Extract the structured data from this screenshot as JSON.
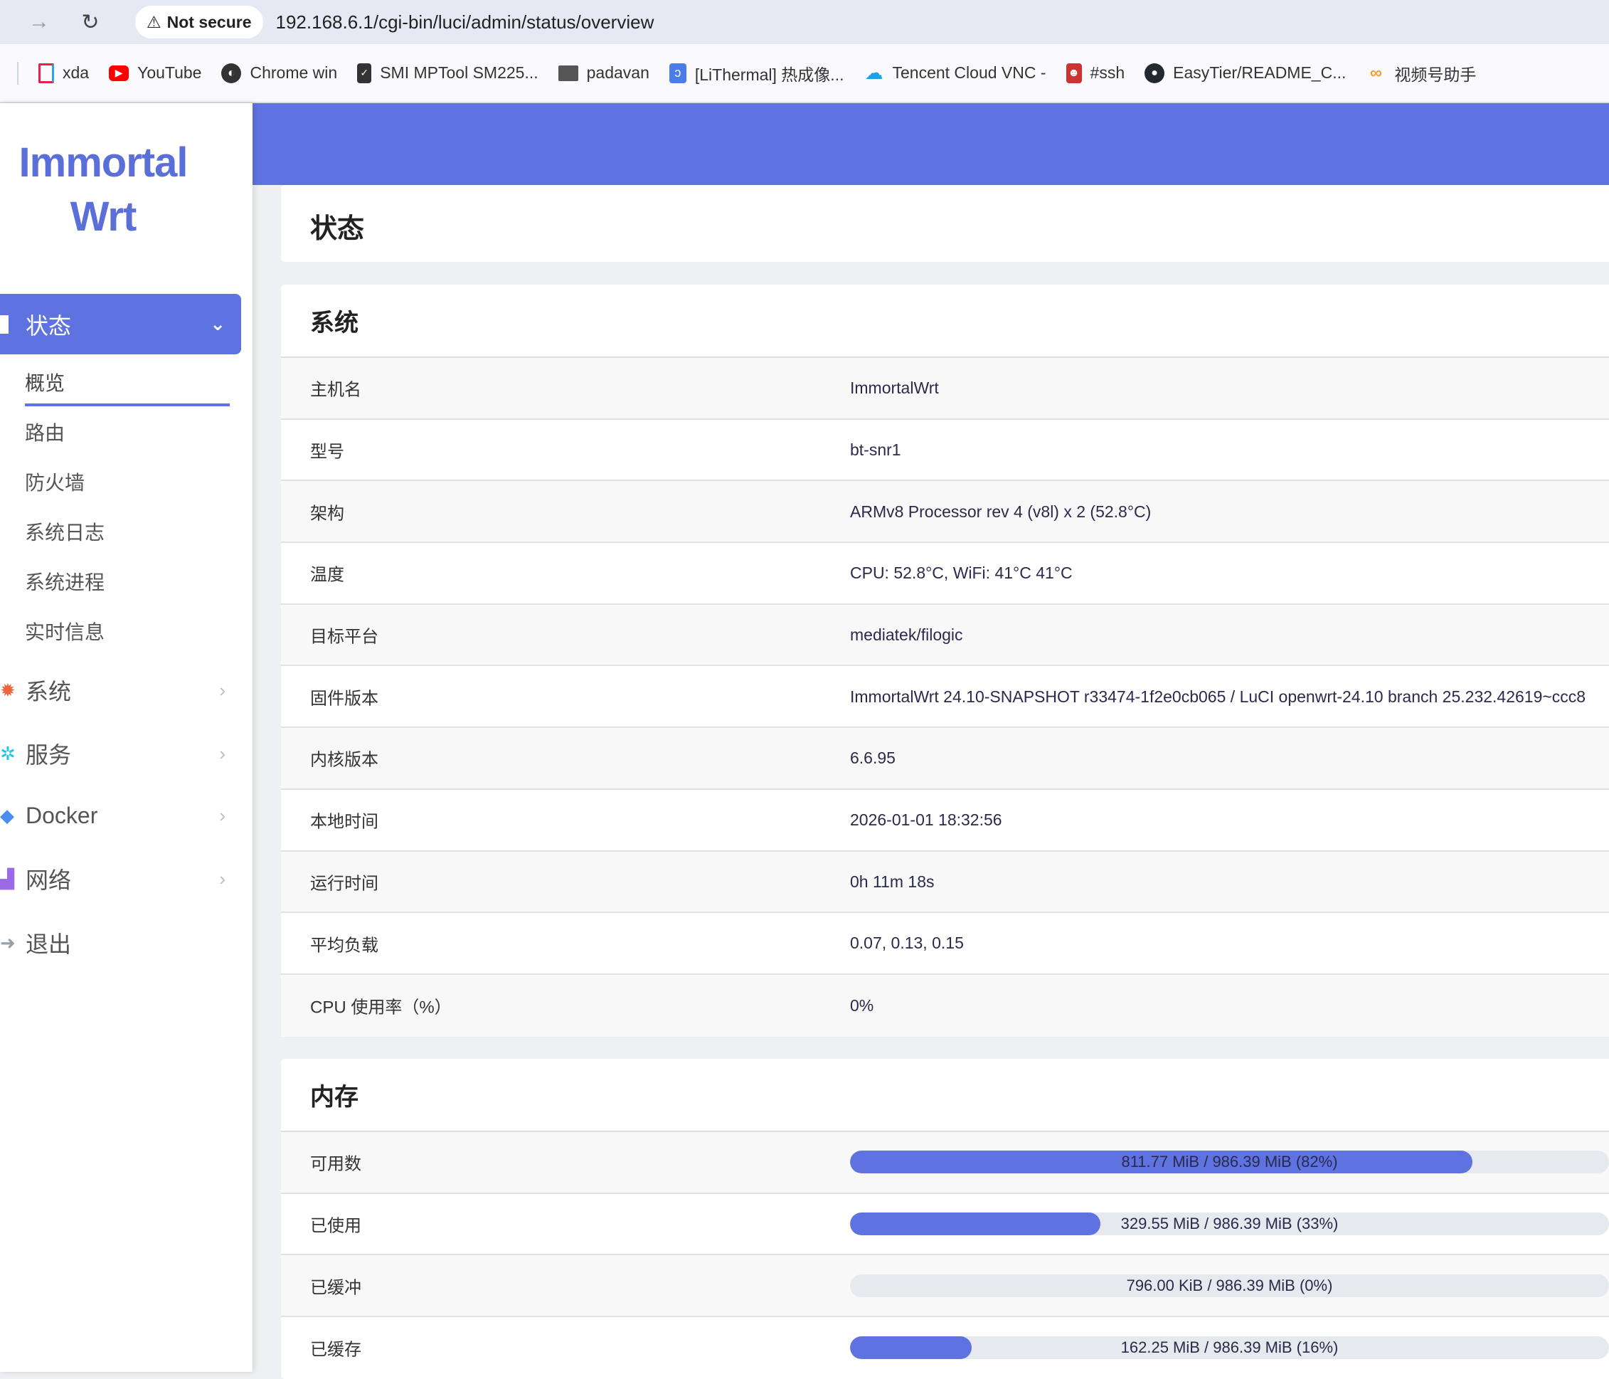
{
  "browser": {
    "security_label": "Not secure",
    "url": "192.168.6.1/cgi-bin/luci/admin/status/overview",
    "bookmarks": [
      {
        "label": "xda",
        "icon": "xda-icon"
      },
      {
        "label": "YouTube",
        "icon": "youtube-icon"
      },
      {
        "label": "Chrome win",
        "icon": "globe-icon"
      },
      {
        "label": "SMI MPTool SM225...",
        "icon": "usb-icon"
      },
      {
        "label": "padavan",
        "icon": "folder-icon"
      },
      {
        "label": "[LiThermal] 热成像...",
        "icon": "lithermal-icon"
      },
      {
        "label": "Tencent Cloud VNC -",
        "icon": "cloud-icon"
      },
      {
        "label": "#ssh",
        "icon": "avatar-icon"
      },
      {
        "label": "EasyTier/README_C...",
        "icon": "github-icon"
      },
      {
        "label": "视频号助手",
        "icon": "channels-icon"
      }
    ]
  },
  "logo": {
    "line1": "Immortal",
    "line2": "Wrt"
  },
  "sidebar": {
    "active": "状态",
    "submenu": [
      "概览",
      "路由",
      "防火墙",
      "系统日志",
      "系统进程",
      "实时信息"
    ],
    "items": [
      {
        "label": "系统",
        "color": "#f0643c"
      },
      {
        "label": "服务",
        "color": "#1ec8e6"
      },
      {
        "label": "Docker",
        "color": "#4a8ef0"
      },
      {
        "label": "网络",
        "color": "#9b6ae6"
      },
      {
        "label": "退出",
        "color": "#9aa0a8"
      }
    ]
  },
  "page_title": "状态",
  "system": {
    "title": "系统",
    "rows": [
      {
        "label": "主机名",
        "value": "ImmortalWrt"
      },
      {
        "label": "型号",
        "value": "bt-snr1"
      },
      {
        "label": "架构",
        "value": "ARMv8 Processor rev 4 (v8l) x 2 (52.8°C)"
      },
      {
        "label": "温度",
        "value": "CPU: 52.8°C, WiFi: 41°C 41°C"
      },
      {
        "label": "目标平台",
        "value": "mediatek/filogic"
      },
      {
        "label": "固件版本",
        "value": "ImmortalWrt 24.10-SNAPSHOT r33474-1f2e0cb065 / LuCI openwrt-24.10 branch 25.232.42619~ccc8"
      },
      {
        "label": "内核版本",
        "value": "6.6.95"
      },
      {
        "label": "本地时间",
        "value": "2026-01-01 18:32:56"
      },
      {
        "label": "运行时间",
        "value": "0h 11m 18s"
      },
      {
        "label": "平均负载",
        "value": "0.07, 0.13, 0.15"
      },
      {
        "label": "CPU 使用率（%）",
        "value": "0%"
      }
    ]
  },
  "memory": {
    "title": "内存",
    "rows": [
      {
        "label": "可用数",
        "text": "811.77 MiB / 986.39 MiB (82%)",
        "percent": 82
      },
      {
        "label": "已使用",
        "text": "329.55 MiB / 986.39 MiB (33%)",
        "percent": 33
      },
      {
        "label": "已缓冲",
        "text": "796.00 KiB / 986.39 MiB (0%)",
        "percent": 0
      },
      {
        "label": "已缓存",
        "text": "162.25 MiB / 986.39 MiB (16%)",
        "percent": 16
      }
    ]
  },
  "accent": "#5e73e0"
}
